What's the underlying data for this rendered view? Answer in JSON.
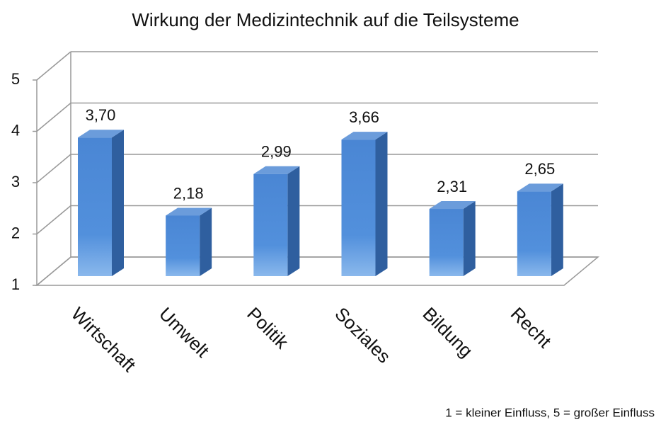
{
  "chart_data": {
    "type": "bar3d",
    "title": "Wirkung der Medizintechnik auf die Teilsysteme",
    "categories": [
      "Wirtschaft",
      "Umwelt",
      "Politik",
      "Soziales",
      "Bildung",
      "Recht"
    ],
    "values": [
      3.7,
      2.18,
      2.99,
      3.66,
      2.31,
      2.65
    ],
    "value_labels": [
      "3,70",
      "2,18",
      "2,99",
      "3,66",
      "2,31",
      "2,65"
    ],
    "color": "#4a86d4",
    "ylim": [
      1,
      5
    ],
    "yticks": [
      1,
      2,
      3,
      4,
      5
    ],
    "grid": true,
    "annotation": "1 = kleiner Einfluss, 5 = großer Einfluss"
  }
}
